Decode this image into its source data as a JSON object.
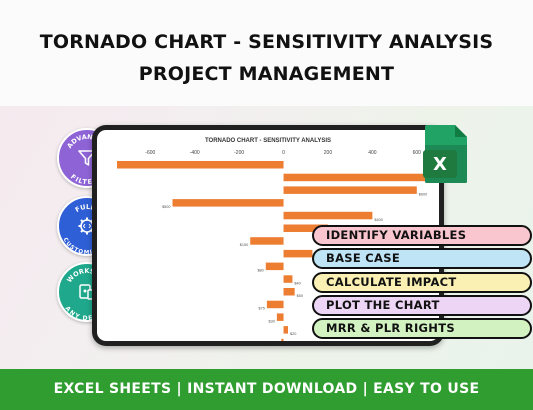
{
  "header": {
    "title_line1": "TORNADO CHART - SENSITIVITY ANALYSIS",
    "title_line2": "PROJECT MANAGEMENT"
  },
  "badges": [
    {
      "text": "ADVANCED FILTERS",
      "icon": "funnel-icon",
      "color": "#8e63d6"
    },
    {
      "text": "FULLY CUSTOMIZABLE",
      "icon": "gear-code-icon",
      "color": "#2f5fd6"
    },
    {
      "text": "WORKS ON ANY DEVICE",
      "icon": "devices-icon",
      "color": "#1fa88c"
    }
  ],
  "excel_icon": {
    "letter": "X",
    "color": "#1e7a3e"
  },
  "features": [
    "IDENTIFY VARIABLES",
    "BASE CASE",
    "CALCULATE IMPACT",
    "PLOT THE CHART",
    "MRR & PLR RIGHTS"
  ],
  "footer": {
    "text": "EXCEL SHEETS | INSTANT DOWNLOAD | EASY TO USE"
  },
  "chart_data": {
    "type": "bar",
    "orientation": "horizontal",
    "title": "TORNADO CHART - SENSITIVITY ANALYSIS",
    "xlim": [
      -750,
      700
    ],
    "x_ticks": [
      -600,
      -400,
      -200,
      0,
      200,
      400,
      600
    ],
    "bar_color": "#ed7d31",
    "values": [
      -750,
      650,
      600,
      -500,
      400,
      200,
      -150,
      130,
      -80,
      40,
      50,
      -75,
      -30,
      20,
      -10
    ],
    "data_labels": [
      "",
      "",
      "$600",
      "$500",
      "$400",
      "$200",
      "$150",
      "$130",
      "$80",
      "$40",
      "$50",
      "$75",
      "$30",
      "$20",
      "$10"
    ]
  }
}
